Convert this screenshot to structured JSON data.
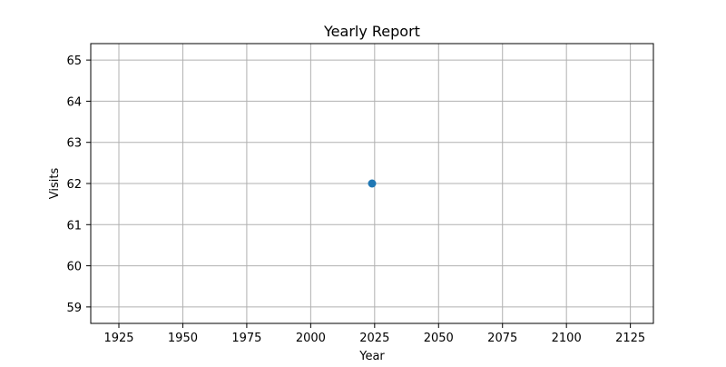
{
  "chart_data": {
    "type": "scatter",
    "title": "Yearly Report",
    "xlabel": "Year",
    "ylabel": "Visits",
    "xlim": [
      1914,
      2134
    ],
    "ylim": [
      58.6,
      65.4
    ],
    "x_ticks": [
      1925,
      1950,
      1975,
      2000,
      2025,
      2050,
      2075,
      2100,
      2125
    ],
    "y_ticks": [
      59,
      60,
      61,
      62,
      63,
      64,
      65
    ],
    "grid": true,
    "series": [
      {
        "color": "#1f77b4",
        "points": [
          {
            "x": 2024,
            "y": 62
          }
        ]
      }
    ]
  }
}
